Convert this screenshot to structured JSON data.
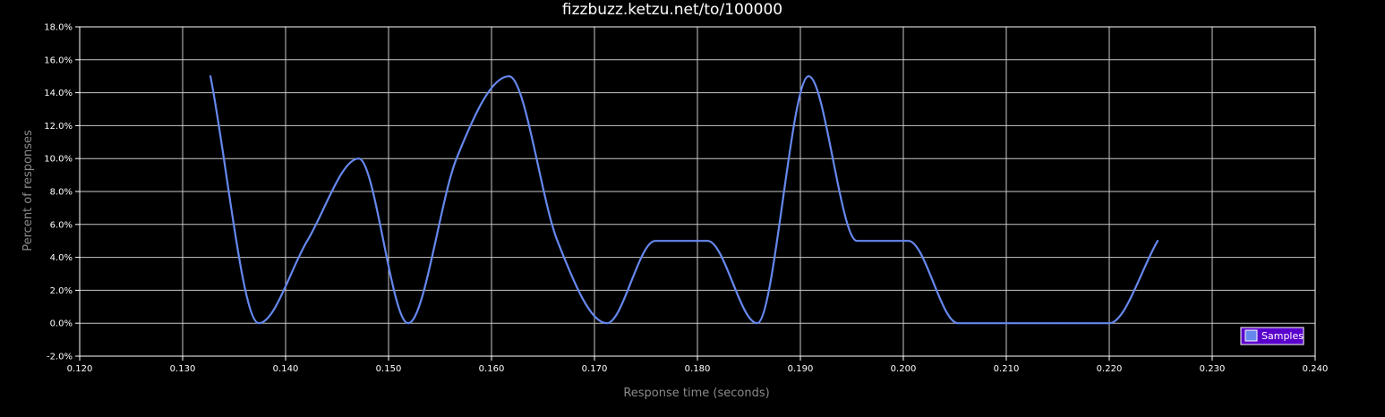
{
  "chart_data": {
    "type": "line",
    "title": "fizzbuzz.ketzu.net/to/100000",
    "xlabel": "Response time (seconds)",
    "ylabel": "Percent of responses",
    "xlim": [
      0.12,
      0.24
    ],
    "ylim": [
      -2.0,
      18.0
    ],
    "x_ticks": [
      "0.120",
      "0.130",
      "0.140",
      "0.150",
      "0.160",
      "0.170",
      "0.180",
      "0.190",
      "0.200",
      "0.210",
      "0.220",
      "0.230",
      "0.240"
    ],
    "y_ticks": [
      "-2.0%",
      "0.0%",
      "2.0%",
      "4.0%",
      "6.0%",
      "8.0%",
      "10.0%",
      "12.0%",
      "14.0%",
      "16.0%",
      "18.0%"
    ],
    "grid": true,
    "legend": "bottom-right",
    "series": [
      {
        "name": "Samples",
        "color": "#6688ee",
        "x": [
          0.1327,
          0.1374,
          0.1421,
          0.1471,
          0.1519,
          0.1566,
          0.1617,
          0.1664,
          0.1712,
          0.1759,
          0.181,
          0.1858,
          0.1908,
          0.1955,
          0.2005,
          0.2053,
          0.2102,
          0.215,
          0.22,
          0.2247
        ],
        "values": [
          15.0,
          0.0,
          5.0,
          10.0,
          0.0,
          10.0,
          15.0,
          5.0,
          0.0,
          5.0,
          5.0,
          0.0,
          15.0,
          5.0,
          5.0,
          0.0,
          0.0,
          0.0,
          0.0,
          5.0
        ]
      }
    ]
  }
}
